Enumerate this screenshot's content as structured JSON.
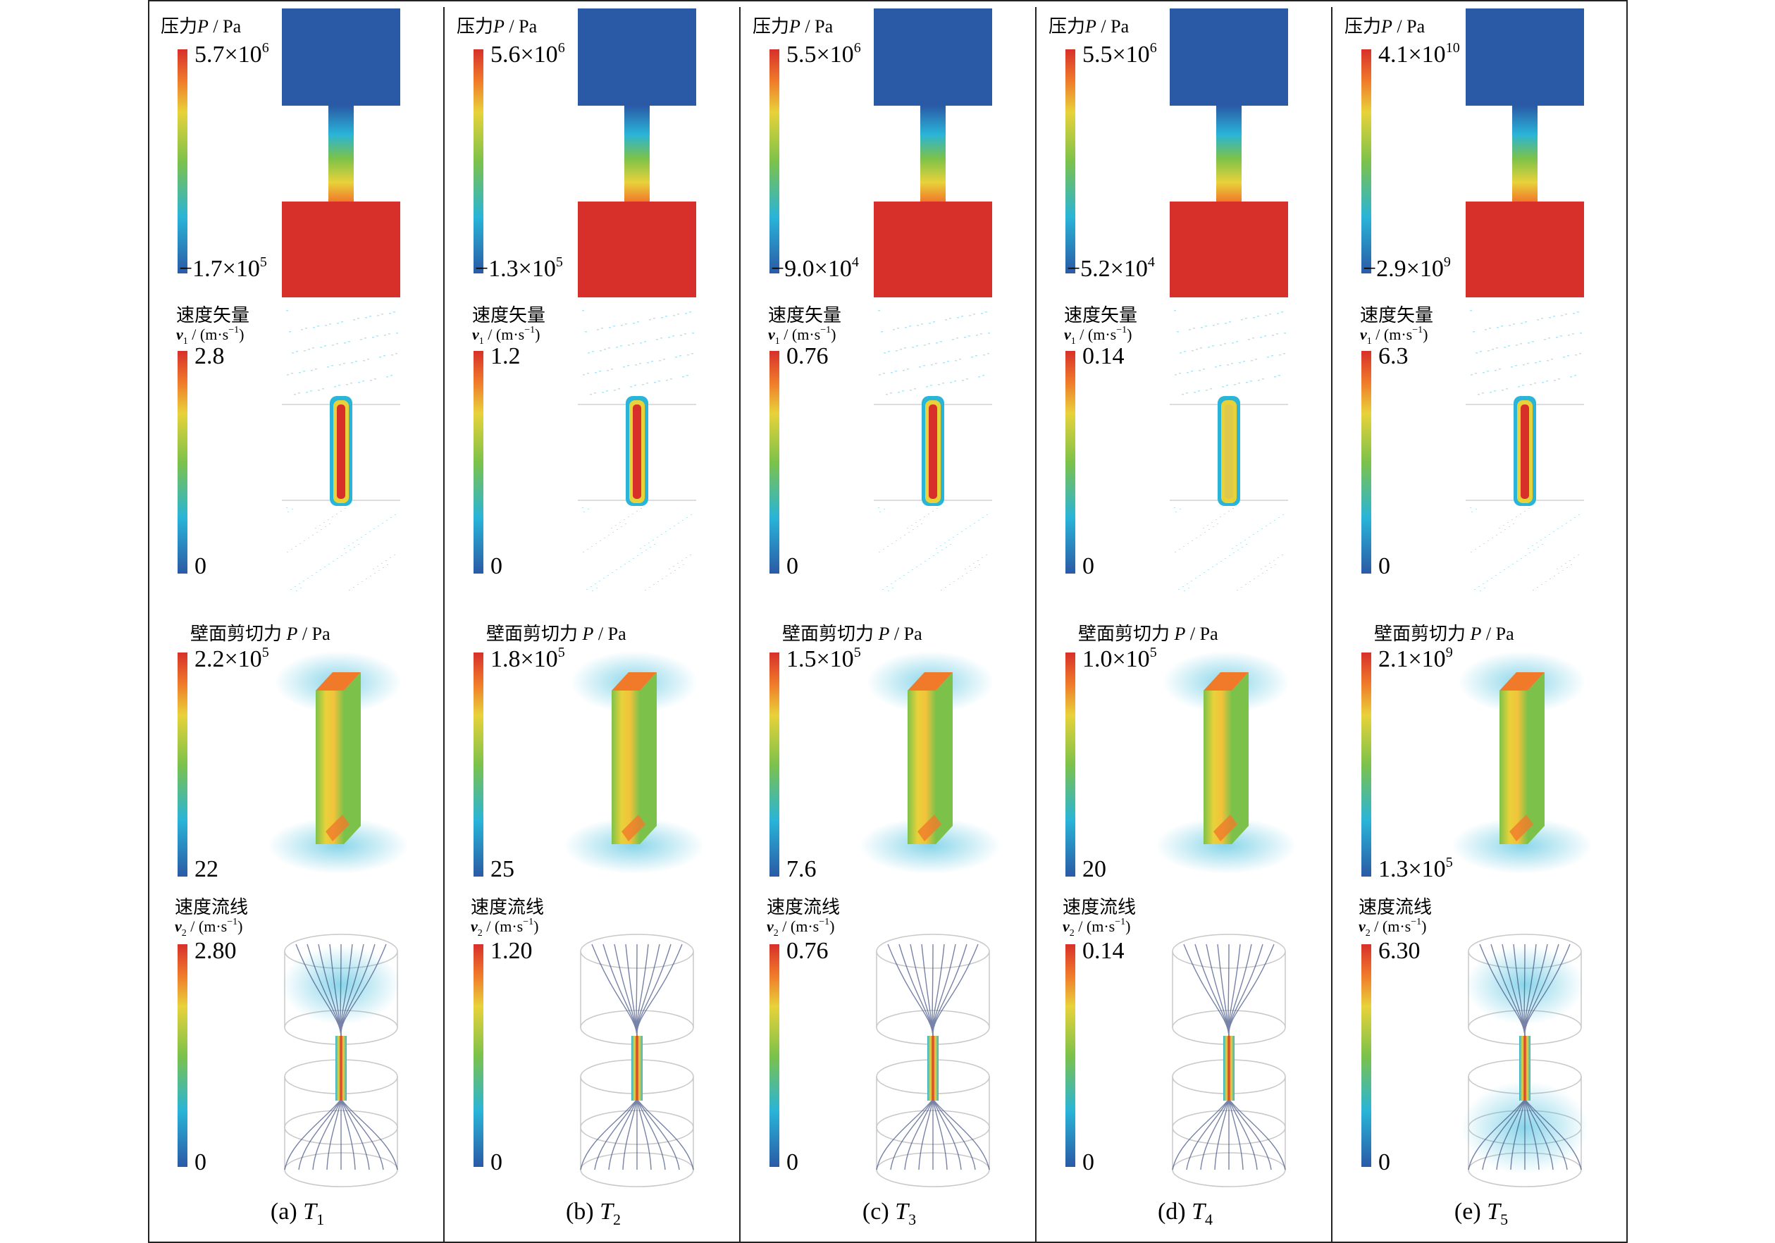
{
  "figure": {
    "columns": [
      {
        "caption_prefix": "(a) ",
        "caption_var": "T",
        "caption_sub": "1",
        "pressure": {
          "title": "压力",
          "var": "P",
          "unit": " / Pa",
          "max_m": "5.7×10",
          "max_e": "6",
          "min_m": "−1.7×10",
          "min_e": "5"
        },
        "velocity": {
          "title": "速度矢量",
          "unit_var": "v",
          "unit_sub": "1",
          "unit": " / (m·s",
          "unit_exp": "−1",
          "unit_close": ")",
          "max": "2.8",
          "min": "0",
          "level": 1.0
        },
        "shear": {
          "title": "壁面剪切力 ",
          "var": "P",
          "unit": " / Pa",
          "max_m": "2.2×10",
          "max_e": "5",
          "min_m": "22",
          "min_e": ""
        },
        "stream": {
          "title": "速度流线",
          "unit_var": "v",
          "unit_sub": "2",
          "unit": " / (m·s",
          "unit_exp": "−1",
          "unit_close": ")",
          "max": "2.80",
          "min": "0"
        }
      },
      {
        "caption_prefix": "(b) ",
        "caption_var": "T",
        "caption_sub": "2",
        "pressure": {
          "title": "压力",
          "var": "P",
          "unit": " / Pa",
          "max_m": "5.6×10",
          "max_e": "6",
          "min_m": "−1.3×10",
          "min_e": "5"
        },
        "velocity": {
          "title": "速度矢量",
          "unit_var": "v",
          "unit_sub": "1",
          "unit": " / (m·s",
          "unit_exp": "−1",
          "unit_close": ")",
          "max": "1.2",
          "min": "0",
          "level": 1.0
        },
        "shear": {
          "title": "壁面剪切力 ",
          "var": "P",
          "unit": " / Pa",
          "max_m": "1.8×10",
          "max_e": "5",
          "min_m": "25",
          "min_e": ""
        },
        "stream": {
          "title": "速度流线",
          "unit_var": "v",
          "unit_sub": "2",
          "unit": " / (m·s",
          "unit_exp": "−1",
          "unit_close": ")",
          "max": "1.20",
          "min": "0"
        }
      },
      {
        "caption_prefix": "(c) ",
        "caption_var": "T",
        "caption_sub": "3",
        "pressure": {
          "title": "压力",
          "var": "P",
          "unit": " / Pa",
          "max_m": "5.5×10",
          "max_e": "6",
          "min_m": "−9.0×10",
          "min_e": "4"
        },
        "velocity": {
          "title": "速度矢量",
          "unit_var": "v",
          "unit_sub": "1",
          "unit": " / (m·s",
          "unit_exp": "−1",
          "unit_close": ")",
          "max": "0.76",
          "min": "0",
          "level": 1.0
        },
        "shear": {
          "title": "壁面剪切力 ",
          "var": "P",
          "unit": " / Pa",
          "max_m": "1.5×10",
          "max_e": "5",
          "min_m": "7.6",
          "min_e": ""
        },
        "stream": {
          "title": "速度流线",
          "unit_var": "v",
          "unit_sub": "2",
          "unit": " / (m·s",
          "unit_exp": "−1",
          "unit_close": ")",
          "max": "0.76",
          "min": "0"
        }
      },
      {
        "caption_prefix": "(d) ",
        "caption_var": "T",
        "caption_sub": "4",
        "pressure": {
          "title": "压力",
          "var": "P",
          "unit": " / Pa",
          "max_m": "5.5×10",
          "max_e": "6",
          "min_m": "−5.2×10",
          "min_e": "4"
        },
        "velocity": {
          "title": "速度矢量",
          "unit_var": "v",
          "unit_sub": "1",
          "unit": " / (m·s",
          "unit_exp": "−1",
          "unit_close": ")",
          "max": "0.14",
          "min": "0",
          "level": 0.55
        },
        "shear": {
          "title": "壁面剪切力 ",
          "var": "P",
          "unit": " / Pa",
          "max_m": "1.0×10",
          "max_e": "5",
          "min_m": "20",
          "min_e": ""
        },
        "stream": {
          "title": "速度流线",
          "unit_var": "v",
          "unit_sub": "2",
          "unit": " / (m·s",
          "unit_exp": "−1",
          "unit_close": ")",
          "max": "0.14",
          "min": "0"
        }
      },
      {
        "caption_prefix": "(e) ",
        "caption_var": "T",
        "caption_sub": "5",
        "pressure": {
          "title": "压力",
          "var": "P",
          "unit": " / Pa",
          "max_m": "4.1×10",
          "max_e": "10",
          "min_m": "−2.9×10",
          "min_e": "9"
        },
        "velocity": {
          "title": "速度矢量",
          "unit_var": "v",
          "unit_sub": "1",
          "unit": " / (m·s",
          "unit_exp": "−1",
          "unit_close": ")",
          "max": "6.3",
          "min": "0",
          "level": 1.0
        },
        "shear": {
          "title": "壁面剪切力 ",
          "var": "P",
          "unit": " / Pa",
          "max_m": "2.1×10",
          "max_e": "9",
          "min_m": "1.3×10",
          "min_e": "5"
        },
        "stream": {
          "title": "速度流线",
          "unit_var": "v",
          "unit_sub": "2",
          "unit": " / (m·s",
          "unit_exp": "−1",
          "unit_close": ")",
          "max": "6.30",
          "min": "0"
        }
      }
    ],
    "colors": {
      "red": "#d7302a",
      "orange": "#f07a2a",
      "yellow": "#e8d23a",
      "green": "#7cc24a",
      "cyan": "#29b4d8",
      "blue": "#2a5aa6",
      "line": "#4a5a8a",
      "frame": "#222222"
    }
  }
}
